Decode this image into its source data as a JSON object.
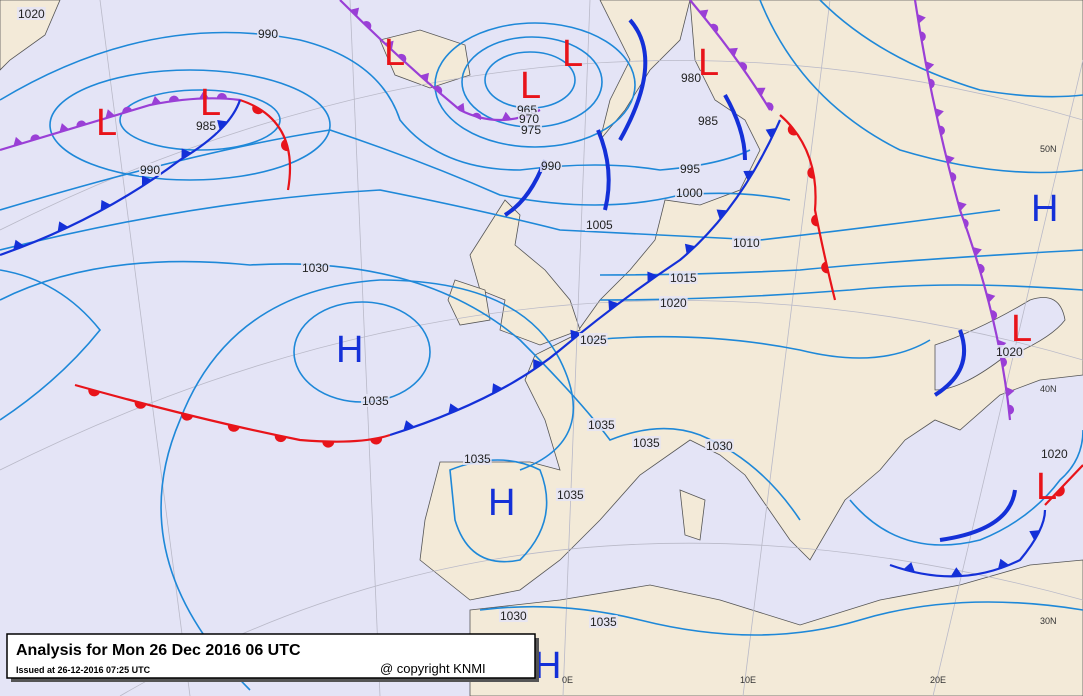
{
  "caption": {
    "title": "Analysis for Mon 26 Dec 2016  06 UTC",
    "issued": "Issued at 26-12-2016  07:25 UTC",
    "copyright": "@ copyright KNMI"
  },
  "pressure_labels": [
    "1020",
    "990",
    "985",
    "990",
    "965",
    "970",
    "975",
    "990",
    "980",
    "985",
    "995",
    "1000",
    "1005",
    "1010",
    "1015",
    "1020",
    "1025",
    "1030",
    "1035",
    "1035",
    "1035",
    "1030",
    "1035",
    "1035",
    "1030",
    "1035",
    "1020",
    "1020"
  ],
  "centers": [
    {
      "label": "L",
      "color": "#e8141a"
    },
    {
      "label": "L",
      "color": "#e8141a"
    },
    {
      "label": "L",
      "color": "#e8141a"
    },
    {
      "label": "L",
      "color": "#e8141a"
    },
    {
      "label": "L",
      "color": "#e8141a"
    },
    {
      "label": "L",
      "color": "#e8141a"
    },
    {
      "label": "H",
      "color": "#1430d8"
    },
    {
      "label": "H",
      "color": "#1430d8"
    },
    {
      "label": "H",
      "color": "#1430d8"
    },
    {
      "label": "H",
      "color": "#1430d8"
    },
    {
      "label": "L",
      "color": "#e8141a"
    },
    {
      "label": "L",
      "color": "#e8141a"
    }
  ],
  "geo_labels": [
    "50N",
    "40N",
    "30N",
    "10E",
    "20E",
    "0E"
  ]
}
